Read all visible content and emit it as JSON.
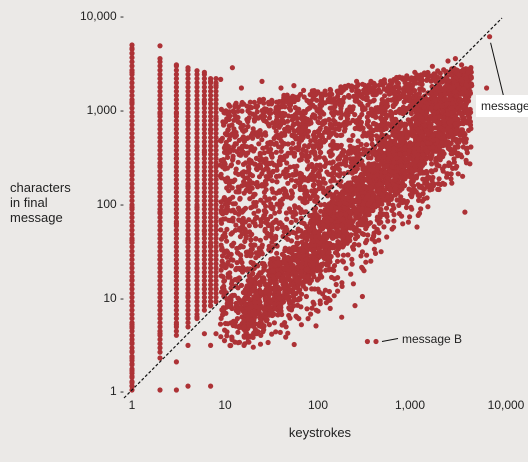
{
  "chart_data": {
    "type": "scatter",
    "title": "",
    "xlabel": "keystrokes",
    "ylabel": "characters\nin final\nmessage",
    "x_scale": "log",
    "y_scale": "log",
    "xlim": [
      1,
      10000
    ],
    "ylim": [
      1,
      10000
    ],
    "x_ticks": [
      1,
      10,
      100,
      1000,
      10000
    ],
    "x_tick_labels": [
      "1",
      "10",
      "100",
      "1,000",
      "10,000"
    ],
    "y_ticks": [
      1,
      10,
      100,
      1000,
      10000
    ],
    "y_tick_labels": [
      "1 -",
      "10 -",
      "100 -",
      "1,000 -",
      "10,000 -"
    ],
    "reference_line": "y = x",
    "colors": {
      "points": "#ad3236",
      "background": "#ebe9e7",
      "line": "#111111"
    },
    "annotations": [
      {
        "label": "message A",
        "x": 7000,
        "y": 6000
      },
      {
        "label": "message B",
        "x": 420,
        "y": 3.3
      }
    ],
    "series": [
      {
        "values_xy": [
          [
            1,
            4.6
          ],
          [
            1,
            3.8
          ],
          [
            1,
            3.2
          ],
          [
            1,
            2.6
          ],
          [
            1,
            2.2
          ],
          [
            1,
            1.9
          ],
          [
            1,
            1.6
          ],
          [
            1,
            1.4
          ],
          [
            1,
            1.2
          ],
          [
            1,
            1.1
          ],
          [
            2,
            2.2
          ],
          [
            2,
            1.0
          ],
          [
            3,
            1.0
          ],
          [
            4,
            1.1
          ],
          [
            7,
            1.1
          ],
          [
            2,
            4800
          ],
          [
            3,
            3000
          ],
          [
            4,
            2800
          ],
          [
            5,
            2600
          ],
          [
            6,
            2500
          ],
          [
            7,
            2000
          ],
          [
            8,
            1900
          ],
          [
            9,
            2100
          ],
          [
            1,
            4500
          ],
          [
            1,
            4000
          ],
          [
            1,
            2500
          ],
          [
            1,
            1200
          ],
          [
            1,
            500
          ],
          [
            1,
            200
          ],
          [
            1,
            90
          ],
          [
            1,
            40
          ],
          [
            1,
            15
          ],
          [
            1,
            8
          ],
          [
            1,
            5
          ],
          [
            2,
            3500
          ],
          [
            2,
            900
          ],
          [
            2,
            250
          ],
          [
            2,
            80
          ],
          [
            2,
            25
          ],
          [
            2,
            8
          ],
          [
            2,
            4
          ],
          [
            3,
            900
          ],
          [
            3,
            300
          ],
          [
            3,
            60
          ],
          [
            3,
            18
          ],
          [
            3,
            5
          ],
          [
            3,
            2
          ],
          [
            4,
            700
          ],
          [
            4,
            150
          ],
          [
            4,
            40
          ],
          [
            4,
            10
          ],
          [
            4,
            3
          ],
          [
            5,
            400
          ],
          [
            5,
            90
          ],
          [
            5,
            20
          ],
          [
            5,
            6
          ],
          [
            6,
            1200
          ],
          [
            6,
            350
          ],
          [
            6,
            50
          ],
          [
            6,
            12
          ],
          [
            6,
            4
          ],
          [
            7,
            600
          ],
          [
            7,
            160
          ],
          [
            7,
            35
          ],
          [
            7,
            8
          ],
          [
            7,
            3
          ],
          [
            8,
            1800
          ],
          [
            8,
            800
          ],
          [
            8,
            250
          ],
          [
            8,
            12
          ],
          [
            8,
            4
          ],
          [
            12,
            2800
          ],
          [
            15,
            1700
          ],
          [
            25,
            2000
          ],
          [
            40,
            1700
          ],
          [
            55,
            1800
          ],
          [
            70,
            1600
          ],
          [
            100,
            1500
          ],
          [
            150,
            1300
          ],
          [
            200,
            1700
          ],
          [
            260,
            2000
          ],
          [
            400,
            1900
          ],
          [
            700,
            2200
          ],
          [
            1100,
            2500
          ],
          [
            1700,
            2900
          ],
          [
            2500,
            3300
          ],
          [
            3000,
            3500
          ],
          [
            3500,
            3000
          ],
          [
            4500,
            1800
          ],
          [
            4000,
            1000
          ],
          [
            3000,
            700
          ],
          [
            2500,
            450
          ],
          [
            2000,
            250
          ],
          [
            1500,
            150
          ],
          [
            1000,
            90
          ],
          [
            650,
            55
          ],
          [
            450,
            40
          ],
          [
            300,
            30
          ],
          [
            200,
            20
          ],
          [
            140,
            16
          ],
          [
            100,
            12
          ],
          [
            75,
            10
          ],
          [
            55,
            8
          ],
          [
            40,
            7
          ],
          [
            30,
            5
          ],
          [
            22,
            4
          ],
          [
            16,
            3
          ],
          [
            3800,
            80
          ],
          [
            6500,
            1700
          ],
          [
            7000,
            6000
          ],
          [
            420,
            3.3
          ],
          [
            340,
            3.3
          ],
          [
            300,
            10
          ],
          [
            250,
            8
          ],
          [
            180,
            6
          ]
        ]
      }
    ]
  }
}
